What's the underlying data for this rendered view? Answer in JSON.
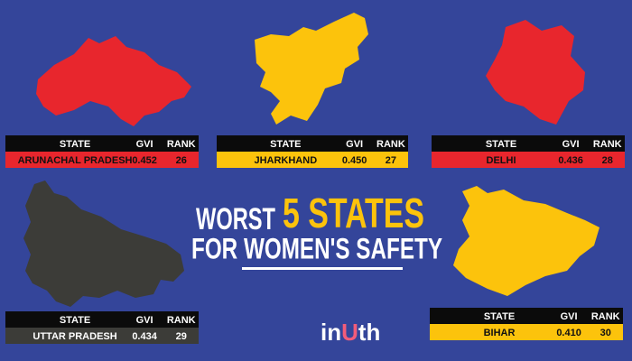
{
  "title": {
    "line1_lead": "WORST",
    "line1_highlight": "5 STATES",
    "line2": "FOR WOMEN'S SAFETY"
  },
  "columns": [
    "STATE",
    "GVI",
    "RANK"
  ],
  "states": [
    {
      "state": "ARUNACHAL PRADESH",
      "gvi": "0.452",
      "rank": "26",
      "color": "#e8262d",
      "text_color": "#111111"
    },
    {
      "state": "JHARKHAND",
      "gvi": "0.450",
      "rank": "27",
      "color": "#fcc30c",
      "text_color": "#111111"
    },
    {
      "state": "DELHI",
      "gvi": "0.436",
      "rank": "28",
      "color": "#e8262d",
      "text_color": "#111111"
    },
    {
      "state": "UTTAR PRADESH",
      "gvi": "0.434",
      "rank": "29",
      "color": "#3c3c38",
      "text_color": "#ffffff"
    },
    {
      "state": "BIHAR",
      "gvi": "0.410",
      "rank": "30",
      "color": "#fcc30c",
      "text_color": "#111111"
    }
  ],
  "logo": [
    "in",
    "U",
    "th"
  ]
}
